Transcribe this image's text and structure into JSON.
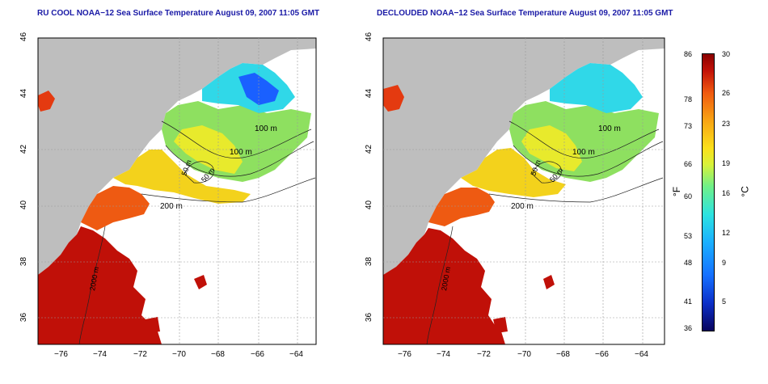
{
  "panels": [
    {
      "title": "RU COOL NOAA−12 Sea Surface Temperature August 09, 2007 11:05 GMT",
      "contour_labels": [
        "100 m",
        "100 m",
        "50 m",
        "50 m",
        "200 m",
        "2000 m"
      ]
    },
    {
      "title": "DECLOUDED NOAA−12 Sea Surface Temperature August 09, 2007 11:05 GMT",
      "contour_labels": [
        "100 m",
        "100 m",
        "50 m",
        "50 m",
        "200 m",
        "2000 m"
      ]
    }
  ],
  "axes": {
    "x_ticks": [
      "−76",
      "−74",
      "−72",
      "−70",
      "−68",
      "−66",
      "−64"
    ],
    "y_ticks": [
      "46",
      "44",
      "42",
      "40",
      "38",
      "36"
    ]
  },
  "colorbar": {
    "fahrenheit_label": "°F",
    "celsius_label": "°C",
    "fahrenheit_ticks": [
      "86",
      "78",
      "73",
      "66",
      "60",
      "53",
      "48",
      "41",
      "36"
    ],
    "celsius_ticks": [
      "30",
      "26",
      "23",
      "19",
      "16",
      "12",
      "9",
      "5"
    ]
  },
  "colors": {
    "land": "#bebebe",
    "title": "#1a1aa6",
    "warm": "#c01008",
    "cold": "#1a60ff"
  }
}
